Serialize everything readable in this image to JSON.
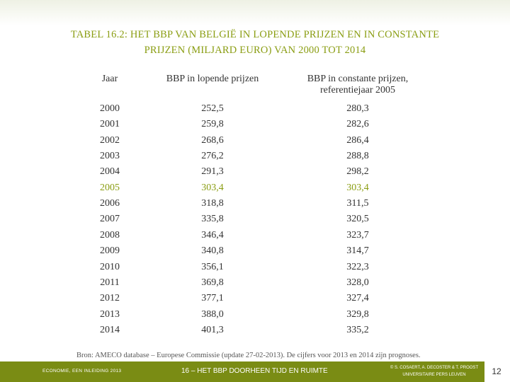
{
  "title": {
    "line1": "TABEL 16.2: HET BBP VAN BELGIË IN LOPENDE PRIJZEN EN IN CONSTANTE",
    "line2": "PRIJZEN (MILJARD EURO) VAN 2000 TOT 2014"
  },
  "headers": {
    "year": "Jaar",
    "current": "BBP in lopende prijzen",
    "constant_line1": "BBP in constante prijzen,",
    "constant_line2": "referentiejaar 2005"
  },
  "rows": [
    {
      "year": "2000",
      "current": "252,5",
      "constant": "280,3"
    },
    {
      "year": "2001",
      "current": "259,8",
      "constant": "282,6"
    },
    {
      "year": "2002",
      "current": "268,6",
      "constant": "286,4"
    },
    {
      "year": "2003",
      "current": "276,2",
      "constant": "288,8"
    },
    {
      "year": "2004",
      "current": "291,3",
      "constant": "298,2"
    },
    {
      "year": "2005",
      "current": "303,4",
      "constant": "303,4"
    },
    {
      "year": "2006",
      "current": "318,8",
      "constant": "311,5"
    },
    {
      "year": "2007",
      "current": "335,8",
      "constant": "320,5"
    },
    {
      "year": "2008",
      "current": "346,4",
      "constant": "323,7"
    },
    {
      "year": "2009",
      "current": "340,8",
      "constant": "314,7"
    },
    {
      "year": "2010",
      "current": "356,1",
      "constant": "322,3"
    },
    {
      "year": "2011",
      "current": "369,8",
      "constant": "328,0"
    },
    {
      "year": "2012",
      "current": "377,1",
      "constant": "327,4"
    },
    {
      "year": "2013",
      "current": "388,0",
      "constant": "329,8"
    },
    {
      "year": "2014",
      "current": "401,3",
      "constant": "335,2"
    }
  ],
  "highlight_year": "2005",
  "source": "Bron: AMECO database – Europese Commissie (update 27-02-2013). De cijfers voor 2013 en 2014 zijn prognoses.",
  "footer": {
    "left": "ECONOMIE, EEN INLEIDING 2013",
    "middle": "16 – HET BBP DOORHEEN TIJD EN RUIMTE",
    "right_line1": "© S. COSAERT, A. DECOSTER & T. PROOST",
    "right_line2": "UNIVERSITAIRE PERS LEUVEN",
    "page": "12"
  },
  "colors": {
    "accent": "#8a9d12",
    "footer_bg": "#7a8c14"
  }
}
